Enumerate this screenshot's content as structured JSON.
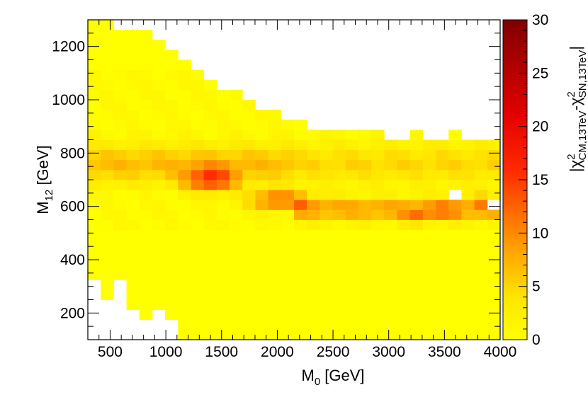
{
  "chart_data": {
    "type": "heatmap",
    "title": "",
    "xlabel": {
      "main": "M",
      "sub": "0",
      "unit": " [GeV]"
    },
    "ylabel": {
      "main": "M",
      "sub": "12",
      "unit": " [GeV]"
    },
    "colorbar_label": {
      "p1": "|χ",
      "p1_sup": "2",
      "p1_sub": "CM,13TeV",
      "p2": "-χ",
      "p2_sup": "2",
      "p2_sub": "SN,13TeV",
      "p3": "|"
    },
    "xlim": [
      300,
      4000
    ],
    "ylim": [
      100,
      1300
    ],
    "zlim": [
      0,
      30
    ],
    "x_bin_width": 115.625,
    "y_bin_width": 37.5,
    "x_ticks": [
      "500",
      "1000",
      "1500",
      "2000",
      "2500",
      "3000",
      "3500",
      "4000"
    ],
    "x_tick_values": [
      500,
      1000,
      1500,
      2000,
      2500,
      3000,
      3500,
      4000
    ],
    "y_ticks": [
      "200",
      "400",
      "600",
      "800",
      "1000",
      "1200"
    ],
    "y_tick_values": [
      200,
      400,
      600,
      800,
      1000,
      1200
    ],
    "z_ticks": [
      "0",
      "5",
      "10",
      "15",
      "20",
      "25",
      "30"
    ],
    "z_tick_values": [
      0,
      5,
      10,
      15,
      20,
      25,
      30
    ],
    "colors": {
      "low": "#ffff00",
      "mid1": "#ffd000",
      "mid2": "#ff9000",
      "mid3": "#ff4000",
      "high": "#ff0000",
      "top": "#800000"
    }
  }
}
